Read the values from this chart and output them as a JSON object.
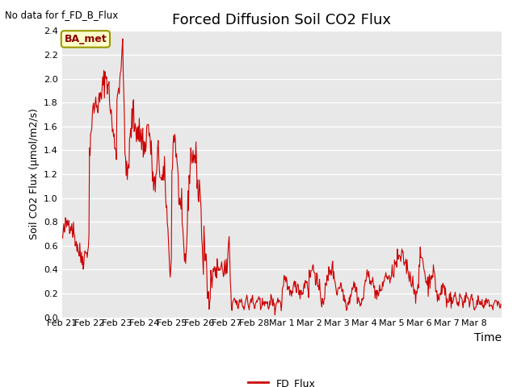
{
  "title": "Forced Diffusion Soil CO2 Flux",
  "xlabel": "Time",
  "ylabel": "Soil CO2 Flux (μmol/m2/s)",
  "no_data_text": "No data for f_FD_B_Flux",
  "legend_label": "FD_Flux",
  "legend_color": "#cc0000",
  "line_color": "#cc0000",
  "bg_color": "#e8e8e8",
  "ylim": [
    0.0,
    2.4
  ],
  "yticks": [
    0.0,
    0.2,
    0.4,
    0.6,
    0.8,
    1.0,
    1.2,
    1.4,
    1.6,
    1.8,
    2.0,
    2.2,
    2.4
  ],
  "xtick_labels": [
    "Feb 21",
    "Feb 22",
    "Feb 23",
    "Feb 24",
    "Feb 25",
    "Feb 26",
    "Feb 27",
    "Feb 28",
    "Mar 1",
    "Mar 2",
    "Mar 3",
    "Mar 4",
    "Mar 5",
    "Mar 6",
    "Mar 7",
    "Mar 8"
  ],
  "box_label": "BA_met",
  "box_facecolor": "#ffffcc",
  "box_edgecolor": "#999900",
  "title_fontsize": 13,
  "tick_fontsize": 8,
  "ylabel_fontsize": 9,
  "xlabel_fontsize": 10
}
